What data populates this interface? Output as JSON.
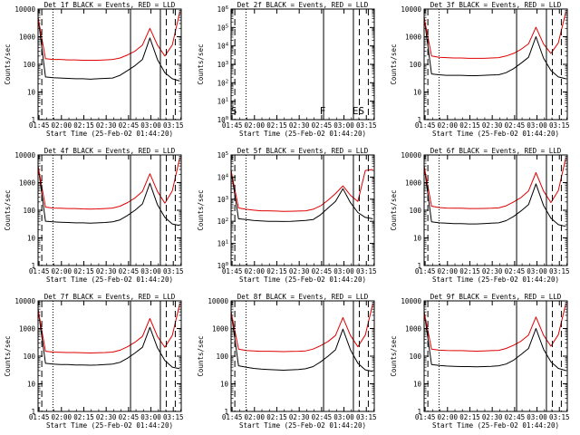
{
  "figure": {
    "xlabel": "Start Time (25-Feb-02 01:44:20)",
    "ylabel": "Counts/sec",
    "x_ticks": [
      "01:45",
      "02:00",
      "02:15",
      "02:30",
      "02:45",
      "03:00",
      "03:15"
    ]
  },
  "colors": {
    "events": "#000000",
    "lld": "#e00000",
    "axes": "#000000"
  },
  "chart_data": [
    {
      "type": "line",
      "title": "Det 1f BLACK = Events, RED = LLD",
      "x_minutes": [
        0,
        5,
        10,
        15,
        20,
        25,
        30,
        35,
        40,
        45,
        50,
        55,
        60,
        65,
        70,
        75,
        80,
        85,
        90,
        95
      ],
      "xlabel": "Start Time (25-Feb-02 01:44:20)",
      "ylabel": "Counts/sec",
      "ylim": [
        1,
        10000
      ],
      "yscale": "log",
      "y_tick_labels": [
        "1",
        "10",
        "100",
        "1000",
        "10000"
      ],
      "series": [
        {
          "name": "Events",
          "color": "#000000",
          "values": [
            5000,
            35,
            33,
            32,
            31,
            30,
            30,
            29,
            30,
            31,
            32,
            40,
            60,
            90,
            150,
            900,
            150,
            50,
            30,
            25
          ]
        },
        {
          "name": "LLD",
          "color": "#e00000",
          "values": [
            5000,
            160,
            150,
            150,
            145,
            145,
            140,
            140,
            140,
            145,
            150,
            170,
            220,
            300,
            500,
            2000,
            500,
            200,
            500,
            8000
          ]
        }
      ],
      "markers": [
        {
          "label": "",
          "x": 2.5,
          "style": "dashed"
        },
        {
          "label": "",
          "x": 10,
          "style": "dotted"
        },
        {
          "label": "",
          "x": 62,
          "style": "solid"
        },
        {
          "label": "",
          "x": 82,
          "style": "solid"
        },
        {
          "label": "",
          "x": 86,
          "style": "dashed"
        },
        {
          "label": "",
          "x": 92,
          "style": "dashed"
        }
      ]
    },
    {
      "type": "line",
      "title": "Det 2f BLACK = Events, RED = LLD",
      "x_minutes": [
        0,
        5,
        10,
        15,
        20,
        25,
        30,
        35,
        40,
        45,
        50,
        55,
        60,
        65,
        70,
        75,
        80,
        85,
        90,
        95
      ],
      "xlabel": "Start Time (25-Feb-02 01:44:20)",
      "ylabel": "Counts/sec",
      "ylim": [
        1,
        1000000
      ],
      "yscale": "log",
      "y_tick_labels": [
        "10^0",
        "10^1",
        "10^2",
        "10^3",
        "10^4",
        "10^5",
        "10^6"
      ],
      "series": [],
      "markers": [
        {
          "label": "S",
          "x": 2.5,
          "style": "dashed"
        },
        {
          "label": "",
          "x": 10,
          "style": "dotted"
        },
        {
          "label": "F",
          "x": 62,
          "style": "solid"
        },
        {
          "label": "",
          "x": 82,
          "style": "solid"
        },
        {
          "label": "ES",
          "x": 86,
          "style": "dashed"
        },
        {
          "label": "",
          "x": 92,
          "style": "dashed"
        }
      ]
    },
    {
      "type": "line",
      "title": "Det 3f BLACK = Events, RED = LLD",
      "x_minutes": [
        0,
        5,
        10,
        15,
        20,
        25,
        30,
        35,
        40,
        45,
        50,
        55,
        60,
        65,
        70,
        75,
        80,
        85,
        90,
        95
      ],
      "xlabel": "Start Time (25-Feb-02 01:44:20)",
      "ylabel": "Counts/sec",
      "ylim": [
        1,
        10000
      ],
      "yscale": "log",
      "y_tick_labels": [
        "1",
        "10",
        "100",
        "1000",
        "10000"
      ],
      "series": [
        {
          "name": "Events",
          "color": "#000000",
          "values": [
            5000,
            45,
            42,
            40,
            40,
            40,
            39,
            39,
            40,
            41,
            42,
            50,
            70,
            110,
            180,
            1000,
            170,
            60,
            35,
            30
          ]
        },
        {
          "name": "LLD",
          "color": "#e00000",
          "values": [
            5000,
            200,
            180,
            175,
            170,
            170,
            165,
            165,
            165,
            170,
            175,
            200,
            250,
            350,
            550,
            2200,
            550,
            250,
            600,
            8000
          ]
        }
      ],
      "markers": [
        {
          "label": "",
          "x": 2.5,
          "style": "dashed"
        },
        {
          "label": "",
          "x": 10,
          "style": "dotted"
        },
        {
          "label": "",
          "x": 62,
          "style": "solid"
        },
        {
          "label": "",
          "x": 82,
          "style": "solid"
        },
        {
          "label": "",
          "x": 86,
          "style": "dashed"
        },
        {
          "label": "",
          "x": 92,
          "style": "dashed"
        }
      ]
    },
    {
      "type": "line",
      "title": "Det 4f BLACK = Events, RED = LLD",
      "x_minutes": [
        0,
        5,
        10,
        15,
        20,
        25,
        30,
        35,
        40,
        45,
        50,
        55,
        60,
        65,
        70,
        75,
        80,
        85,
        90,
        95
      ],
      "xlabel": "Start Time (25-Feb-02 01:44:20)",
      "ylabel": "Counts/sec",
      "ylim": [
        1,
        10000
      ],
      "yscale": "log",
      "y_tick_labels": [
        "1",
        "10",
        "100",
        "1000",
        "10000"
      ],
      "series": [
        {
          "name": "Events",
          "color": "#000000",
          "values": [
            4000,
            40,
            38,
            37,
            36,
            35,
            35,
            34,
            35,
            36,
            38,
            45,
            65,
            100,
            170,
            950,
            160,
            55,
            32,
            28
          ]
        },
        {
          "name": "LLD",
          "color": "#e00000",
          "values": [
            4000,
            130,
            120,
            118,
            115,
            115,
            112,
            110,
            112,
            115,
            120,
            140,
            190,
            280,
            480,
            2100,
            480,
            180,
            500,
            8000
          ]
        }
      ],
      "markers": [
        {
          "label": "",
          "x": 2.5,
          "style": "dashed"
        },
        {
          "label": "",
          "x": 10,
          "style": "dotted"
        },
        {
          "label": "",
          "x": 62,
          "style": "solid"
        },
        {
          "label": "",
          "x": 82,
          "style": "solid"
        },
        {
          "label": "",
          "x": 86,
          "style": "dashed"
        },
        {
          "label": "",
          "x": 92,
          "style": "dashed"
        }
      ]
    },
    {
      "type": "line",
      "title": "Det 5f BLACK = Events, RED = LLD",
      "x_minutes": [
        0,
        5,
        10,
        15,
        20,
        25,
        30,
        35,
        40,
        45,
        50,
        55,
        60,
        65,
        70,
        75,
        80,
        85,
        90,
        95
      ],
      "xlabel": "Start Time (25-Feb-02 01:44:20)",
      "ylabel": "Counts/sec",
      "ylim": [
        1,
        100000
      ],
      "yscale": "log",
      "y_tick_labels": [
        "10^0",
        "10^1",
        "10^2",
        "10^3",
        "10^4",
        "10^5"
      ],
      "series": [
        {
          "name": "Events",
          "color": "#000000",
          "values": [
            20000,
            130,
            120,
            110,
            105,
            100,
            100,
            98,
            100,
            105,
            110,
            120,
            200,
            400,
            800,
            3000,
            700,
            250,
            150,
            130
          ]
        },
        {
          "name": "LLD",
          "color": "#e00000",
          "values": [
            20000,
            400,
            350,
            320,
            300,
            300,
            290,
            280,
            285,
            290,
            300,
            350,
            500,
            900,
            1800,
            4000,
            1500,
            800,
            20000,
            22000
          ]
        }
      ],
      "markers": [
        {
          "label": "",
          "x": 2.5,
          "style": "dashed"
        },
        {
          "label": "",
          "x": 10,
          "style": "dotted"
        },
        {
          "label": "",
          "x": 62,
          "style": "solid"
        },
        {
          "label": "",
          "x": 82,
          "style": "solid"
        },
        {
          "label": "",
          "x": 86,
          "style": "dashed"
        },
        {
          "label": "",
          "x": 92,
          "style": "dashed"
        }
      ]
    },
    {
      "type": "line",
      "title": "Det 6f BLACK = Events, RED = LLD",
      "x_minutes": [
        0,
        5,
        10,
        15,
        20,
        25,
        30,
        35,
        40,
        45,
        50,
        55,
        60,
        65,
        70,
        75,
        80,
        85,
        90,
        95
      ],
      "xlabel": "Start Time (25-Feb-02 01:44:20)",
      "ylabel": "Counts/sec",
      "ylim": [
        1,
        10000
      ],
      "yscale": "log",
      "y_tick_labels": [
        "1",
        "10",
        "100",
        "1000",
        "10000"
      ],
      "series": [
        {
          "name": "Events",
          "color": "#000000",
          "values": [
            4000,
            38,
            35,
            34,
            33,
            33,
            32,
            32,
            33,
            34,
            35,
            42,
            60,
            95,
            160,
            900,
            150,
            52,
            30,
            26
          ]
        },
        {
          "name": "LLD",
          "color": "#e00000",
          "values": [
            4000,
            140,
            125,
            120,
            118,
            118,
            115,
            115,
            116,
            118,
            122,
            145,
            200,
            290,
            500,
            2300,
            500,
            190,
            520,
            8000
          ]
        }
      ],
      "markers": [
        {
          "label": "",
          "x": 2.5,
          "style": "dashed"
        },
        {
          "label": "",
          "x": 10,
          "style": "dotted"
        },
        {
          "label": "",
          "x": 62,
          "style": "solid"
        },
        {
          "label": "",
          "x": 82,
          "style": "solid"
        },
        {
          "label": "",
          "x": 86,
          "style": "dashed"
        },
        {
          "label": "",
          "x": 92,
          "style": "dashed"
        }
      ]
    },
    {
      "type": "line",
      "title": "Det 7f BLACK = Events, RED = LLD",
      "x_minutes": [
        0,
        5,
        10,
        15,
        20,
        25,
        30,
        35,
        40,
        45,
        50,
        55,
        60,
        65,
        70,
        75,
        80,
        85,
        90,
        95
      ],
      "xlabel": "Start Time (25-Feb-02 01:44:20)",
      "ylabel": "Counts/sec",
      "ylim": [
        1,
        10000
      ],
      "yscale": "log",
      "y_tick_labels": [
        "1",
        "10",
        "100",
        "1000",
        "10000"
      ],
      "series": [
        {
          "name": "Events",
          "color": "#000000",
          "values": [
            5000,
            55,
            52,
            50,
            50,
            48,
            48,
            47,
            48,
            50,
            52,
            60,
            85,
            130,
            210,
            1100,
            200,
            70,
            40,
            35
          ]
        },
        {
          "name": "LLD",
          "color": "#e00000",
          "values": [
            5000,
            150,
            140,
            138,
            135,
            135,
            132,
            130,
            132,
            135,
            140,
            165,
            220,
            320,
            520,
            2300,
            520,
            210,
            560,
            8000
          ]
        }
      ],
      "markers": [
        {
          "label": "",
          "x": 2.5,
          "style": "dashed"
        },
        {
          "label": "",
          "x": 10,
          "style": "dotted"
        },
        {
          "label": "",
          "x": 62,
          "style": "solid"
        },
        {
          "label": "",
          "x": 82,
          "style": "solid"
        },
        {
          "label": "",
          "x": 86,
          "style": "dashed"
        },
        {
          "label": "",
          "x": 92,
          "style": "dashed"
        }
      ]
    },
    {
      "type": "line",
      "title": "Det 8f BLACK = Events, RED = LLD",
      "x_minutes": [
        0,
        5,
        10,
        15,
        20,
        25,
        30,
        35,
        40,
        45,
        50,
        55,
        60,
        65,
        70,
        75,
        80,
        85,
        90,
        95
      ],
      "xlabel": "Start Time (25-Feb-02 01:44:20)",
      "ylabel": "Counts/sec",
      "ylim": [
        1,
        10000
      ],
      "yscale": "log",
      "y_tick_labels": [
        "1",
        "10",
        "100",
        "1000",
        "10000"
      ],
      "series": [
        {
          "name": "Events",
          "color": "#000000",
          "values": [
            4000,
            45,
            40,
            36,
            34,
            33,
            32,
            31,
            32,
            33,
            35,
            42,
            62,
            100,
            170,
            950,
            170,
            55,
            32,
            28
          ]
        },
        {
          "name": "LLD",
          "color": "#e00000",
          "values": [
            4000,
            180,
            160,
            155,
            150,
            150,
            148,
            146,
            148,
            150,
            155,
            180,
            240,
            340,
            560,
            2500,
            560,
            220,
            580,
            8000
          ]
        }
      ],
      "markers": [
        {
          "label": "",
          "x": 2.5,
          "style": "dashed"
        },
        {
          "label": "",
          "x": 10,
          "style": "dotted"
        },
        {
          "label": "",
          "x": 62,
          "style": "solid"
        },
        {
          "label": "",
          "x": 82,
          "style": "solid"
        },
        {
          "label": "",
          "x": 86,
          "style": "dashed"
        },
        {
          "label": "",
          "x": 92,
          "style": "dashed"
        }
      ]
    },
    {
      "type": "line",
      "title": "Det 9f BLACK = Events, RED = LLD",
      "x_minutes": [
        0,
        5,
        10,
        15,
        20,
        25,
        30,
        35,
        40,
        45,
        50,
        55,
        60,
        65,
        70,
        75,
        80,
        85,
        90,
        95
      ],
      "xlabel": "Start Time (25-Feb-02 01:44:20)",
      "ylabel": "Counts/sec",
      "ylim": [
        1,
        10000
      ],
      "yscale": "log",
      "y_tick_labels": [
        "1",
        "10",
        "100",
        "1000",
        "10000"
      ],
      "series": [
        {
          "name": "Events",
          "color": "#000000",
          "values": [
            4000,
            50,
            46,
            44,
            43,
            42,
            42,
            41,
            42,
            43,
            45,
            52,
            72,
            115,
            190,
            1000,
            180,
            62,
            36,
            30
          ]
        },
        {
          "name": "LLD",
          "color": "#e00000",
          "values": [
            4000,
            180,
            165,
            160,
            158,
            158,
            155,
            152,
            155,
            158,
            162,
            190,
            250,
            350,
            580,
            2600,
            580,
            230,
            600,
            8000
          ]
        }
      ],
      "markers": [
        {
          "label": "",
          "x": 2.5,
          "style": "dashed"
        },
        {
          "label": "",
          "x": 10,
          "style": "dotted"
        },
        {
          "label": "",
          "x": 62,
          "style": "solid"
        },
        {
          "label": "",
          "x": 82,
          "style": "solid"
        },
        {
          "label": "",
          "x": 86,
          "style": "dashed"
        },
        {
          "label": "",
          "x": 92,
          "style": "dashed"
        }
      ]
    }
  ]
}
